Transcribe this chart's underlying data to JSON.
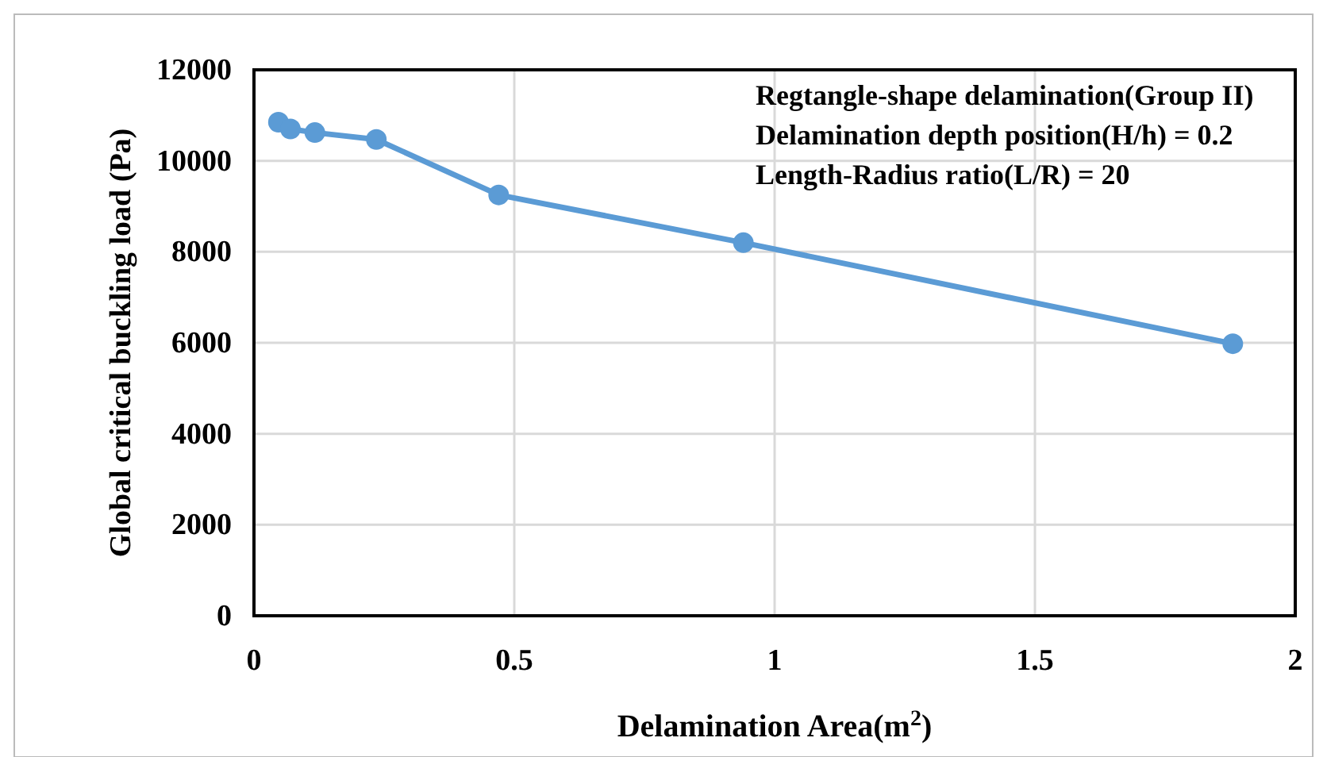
{
  "chart_data": {
    "type": "line",
    "xlabel": "Delamination Area(m$^{2}$)",
    "ylabel": "Global critical buckling load (Pa)",
    "x": [
      0.047,
      0.07,
      0.117,
      0.235,
      0.47,
      0.94,
      1.88
    ],
    "series": [
      {
        "color": "#5b9bd5",
        "values": [
          10850,
          10700,
          10620,
          10470,
          9250,
          8200,
          5980
        ]
      }
    ],
    "xlim": [
      0,
      2
    ],
    "xticks": [
      0,
      0.5,
      1,
      1.5,
      2
    ],
    "ylim": [
      0,
      12000
    ],
    "yticks": [
      0,
      2000,
      4000,
      6000,
      8000,
      10000,
      12000
    ],
    "grid": true,
    "marker": "circle",
    "line_style": "solid",
    "annotations": [
      "Regtangle-shape delamination(Group II)",
      "Delamination depth position(H/h) = 0.2",
      "Length-Radius ratio(L/R) = 20"
    ]
  }
}
